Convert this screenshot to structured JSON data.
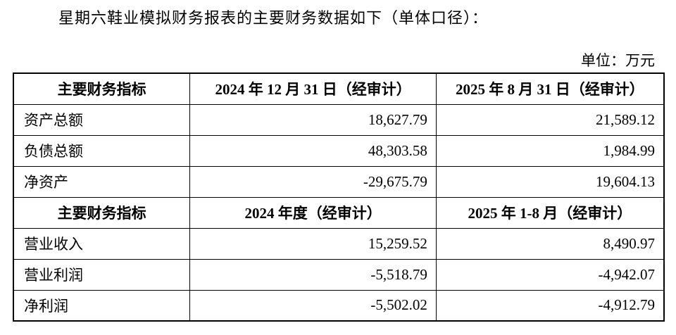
{
  "intro": "星期六鞋业模拟财务报表的主要财务数据如下（单体口径）：",
  "unit": "单位：万元",
  "table": {
    "sections": [
      {
        "header": [
          "主要财务指标",
          "2024 年 12 月 31 日（经审计）",
          "2025 年 8 月 31 日（经审计）"
        ],
        "rows": [
          [
            "资产总额",
            "18,627.79",
            "21,589.12"
          ],
          [
            "负债总额",
            "48,303.58",
            "1,984.99"
          ],
          [
            "净资产",
            "-29,675.79",
            "19,604.13"
          ]
        ]
      },
      {
        "header": [
          "主要财务指标",
          "2024 年度（经审计）",
          "2025 年 1-8 月（经审计）"
        ],
        "rows": [
          [
            "营业收入",
            "15,259.52",
            "8,490.97"
          ],
          [
            "营业利润",
            "-5,518.79",
            "-4,942.07"
          ],
          [
            "净利润",
            "-5,502.02",
            "-4,912.79"
          ]
        ]
      }
    ]
  }
}
